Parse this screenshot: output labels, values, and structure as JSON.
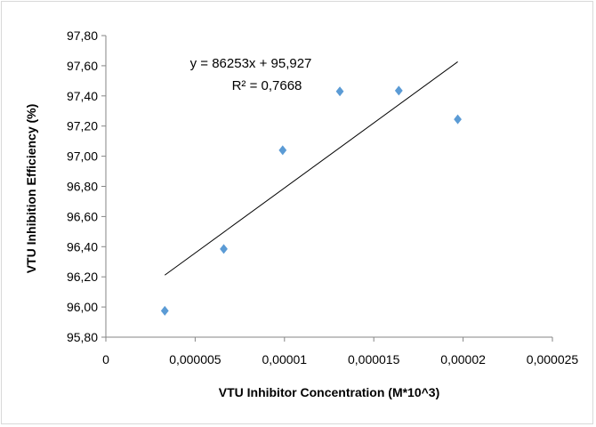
{
  "chart_data": {
    "type": "scatter",
    "title": "",
    "xlabel": "VTU Inhibitor Concentration (M*10^3)",
    "ylabel": "VTU Inhibition Efficiency (%)",
    "xlim": [
      0,
      2.5e-05
    ],
    "ylim": [
      95.8,
      97.8
    ],
    "x_ticks": [
      0,
      5e-06,
      1e-05,
      1.5e-05,
      2e-05,
      2.5e-05
    ],
    "x_tick_labels": [
      "0",
      "0,000005",
      "0,00001",
      "0,000015",
      "0,00002",
      "0,000025"
    ],
    "y_ticks": [
      95.8,
      96.0,
      96.2,
      96.4,
      96.6,
      96.8,
      97.0,
      97.2,
      97.4,
      97.6,
      97.8
    ],
    "y_tick_labels": [
      "95,80",
      "96,00",
      "96,20",
      "96,40",
      "96,60",
      "96,80",
      "97,00",
      "97,20",
      "97,40",
      "97,60",
      "97,80"
    ],
    "grid": false,
    "legend": "none",
    "marker_color": "#5b9bd5",
    "marker": "diamond",
    "series": [
      {
        "x": [
          3.3e-06,
          6.6e-06,
          9.9e-06,
          1.31e-05,
          1.64e-05,
          1.97e-05
        ],
        "y": [
          95.975,
          96.385,
          97.04,
          97.43,
          97.435,
          97.245
        ]
      }
    ],
    "trendline": {
      "type": "linear",
      "slope": 86253,
      "intercept": 95.927,
      "x_range": [
        3.3e-06,
        1.97e-05
      ],
      "equation_text": "y = 86253x + 95,927",
      "r2_text": "R² = 0,7668",
      "color": "#000000"
    }
  }
}
